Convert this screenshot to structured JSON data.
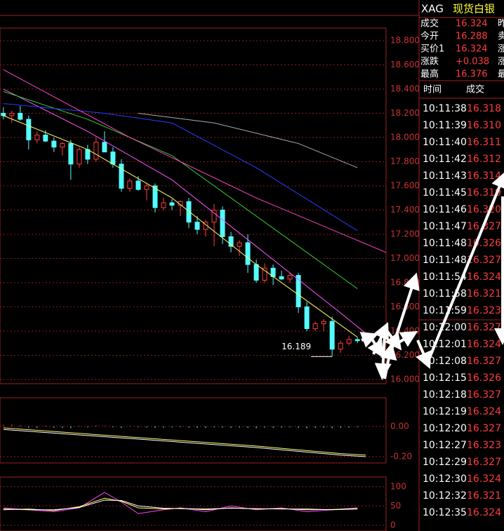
{
  "chart_data": [
    {
      "type": "candlestick",
      "xlim": [
        -0.4,
        45.4
      ],
      "ylim": [
        15.965,
        18.904
      ],
      "yticks": [
        {
          "value": 18.8,
          "label": "18.800"
        },
        {
          "value": 18.6,
          "label": "18.600"
        },
        {
          "value": 18.4,
          "label": "18.400"
        },
        {
          "value": 18.2,
          "label": "18.200"
        },
        {
          "value": 18.0,
          "label": "18.000"
        },
        {
          "value": 17.8,
          "label": "17.800"
        },
        {
          "value": 17.6,
          "label": "17.600"
        },
        {
          "value": 17.4,
          "label": "17.400"
        },
        {
          "value": 17.2,
          "label": "17.200"
        },
        {
          "value": 17.0,
          "label": "17.000"
        },
        {
          "value": 16.8,
          "label": "16.800"
        },
        {
          "value": 16.6,
          "label": "16.600"
        },
        {
          "value": 16.4,
          "label": "16.400"
        },
        {
          "value": 16.2,
          "label": "16.200"
        },
        {
          "value": 16.0,
          "label": "16.000"
        }
      ],
      "grid": true,
      "up_color": "#ff3c3c",
      "down_color": "#54fcfc",
      "open": [
        18.2,
        18.18,
        18.2,
        18.15,
        17.98,
        18.02,
        17.97,
        17.92,
        17.95,
        17.78,
        17.9,
        17.82,
        17.96,
        17.88,
        17.78,
        17.58,
        17.64,
        17.57,
        17.6,
        17.42,
        17.46,
        17.44,
        17.47,
        17.3,
        17.24,
        17.3,
        17.4,
        17.18,
        17.1,
        17.13,
        16.95,
        16.82,
        16.92,
        16.85,
        16.83,
        16.86,
        16.6,
        16.42,
        16.46,
        16.48,
        16.25,
        16.3,
        16.33
      ],
      "high": [
        18.25,
        18.22,
        18.26,
        18.18,
        18.05,
        18.06,
        18.0,
        17.96,
        17.98,
        17.92,
        17.94,
        18.0,
        18.05,
        17.92,
        17.82,
        17.66,
        17.68,
        17.62,
        17.62,
        17.5,
        17.49,
        17.48,
        17.5,
        17.35,
        17.32,
        17.45,
        17.43,
        17.22,
        17.15,
        17.2,
        16.99,
        16.96,
        16.95,
        16.9,
        16.88,
        16.88,
        16.64,
        16.48,
        16.5,
        16.52,
        16.32,
        16.36,
        16.35
      ],
      "low": [
        18.15,
        18.12,
        18.14,
        17.9,
        17.95,
        17.96,
        17.88,
        17.85,
        17.65,
        17.75,
        17.78,
        17.8,
        17.9,
        17.75,
        17.55,
        17.55,
        17.56,
        17.48,
        17.38,
        17.4,
        17.4,
        17.35,
        17.25,
        17.2,
        17.18,
        17.1,
        17.12,
        17.05,
        17.02,
        16.88,
        16.8,
        16.8,
        16.78,
        16.82,
        16.8,
        16.55,
        16.4,
        16.4,
        16.4,
        16.189,
        16.22,
        16.28,
        16.3
      ],
      "close": [
        18.18,
        18.2,
        18.15,
        17.98,
        18.02,
        17.97,
        17.92,
        17.95,
        17.78,
        17.9,
        17.82,
        17.96,
        17.88,
        17.78,
        17.58,
        17.64,
        17.57,
        17.6,
        17.42,
        17.46,
        17.44,
        17.47,
        17.3,
        17.24,
        17.3,
        17.4,
        17.18,
        17.1,
        17.13,
        16.95,
        16.82,
        16.92,
        16.85,
        16.83,
        16.86,
        16.6,
        16.42,
        16.46,
        16.48,
        16.25,
        16.3,
        16.33,
        16.32
      ],
      "series": [
        {
          "color": "#ffff66",
          "x": [
            0,
            10,
            20,
            30,
            40,
            42
          ],
          "values": [
            18.18,
            17.9,
            17.5,
            16.95,
            16.45,
            16.35
          ]
        },
        {
          "color": "#ff55ff",
          "x": [
            0,
            10,
            20,
            30,
            40,
            43
          ],
          "values": [
            18.4,
            18.05,
            17.65,
            17.1,
            16.55,
            16.38
          ]
        },
        {
          "color": "#33cc33",
          "x": [
            0,
            10,
            20,
            28,
            38,
            42
          ],
          "values": [
            18.38,
            18.15,
            17.85,
            17.45,
            16.95,
            16.75
          ]
        },
        {
          "color": "#2a3cff",
          "x": [
            0,
            12,
            20,
            30,
            42
          ],
          "values": [
            18.28,
            18.2,
            18.12,
            17.75,
            17.23
          ]
        },
        {
          "color": "#aaaaaa",
          "x": [
            16,
            25,
            35,
            42
          ],
          "values": [
            18.2,
            18.12,
            17.95,
            17.75
          ]
        },
        {
          "color": "#ff44cc",
          "x": [
            0,
            15,
            30,
            45.4
          ],
          "values": [
            18.56,
            18.0,
            17.5,
            17.05
          ]
        }
      ],
      "annotation": "16.189",
      "annotation_index": 39
    },
    {
      "type": "macd",
      "xlim": [
        -0.4,
        45.4
      ],
      "ylim": [
        -0.242,
        0.19
      ],
      "yticks": [
        {
          "value": 0,
          "label": "0.00"
        },
        {
          "value": -0.2,
          "label": "-0.20"
        }
      ],
      "grid": true,
      "bars": [
        0.01,
        0.012,
        0.01,
        -0.008,
        -0.01,
        0.006,
        -0.008,
        -0.01,
        -0.012,
        0.005,
        -0.006,
        0.008,
        0.005,
        -0.006,
        -0.01,
        0.004,
        -0.005,
        -0.008,
        -0.01,
        -0.008,
        -0.006,
        -0.005,
        -0.008,
        -0.01,
        -0.01,
        -0.006,
        -0.008,
        -0.01,
        -0.008,
        -0.01,
        -0.012,
        -0.008,
        -0.01,
        -0.008,
        -0.006,
        -0.01,
        -0.012,
        -0.01,
        -0.008,
        -0.012,
        -0.01,
        -0.008,
        -0.006
      ],
      "series": [
        {
          "color": "#ffffff",
          "x": [
            0,
            10,
            20,
            30,
            40,
            43
          ],
          "values": [
            -0.02,
            -0.06,
            -0.1,
            -0.14,
            -0.19,
            -0.2
          ]
        },
        {
          "color": "#ffff66",
          "x": [
            0,
            10,
            20,
            30,
            40,
            43
          ],
          "values": [
            -0.01,
            -0.05,
            -0.09,
            -0.13,
            -0.18,
            -0.19
          ]
        }
      ]
    },
    {
      "type": "line",
      "xlim": [
        -0.4,
        45.4
      ],
      "ylim": [
        -15,
        125
      ],
      "yticks": [
        100,
        50,
        0
      ],
      "grid": true,
      "series": [
        {
          "color": "#ff44ff",
          "x": [
            0,
            3,
            6,
            9,
            12,
            14,
            16,
            19,
            21,
            24,
            27,
            30,
            33,
            36,
            39,
            42
          ],
          "values": [
            45,
            40,
            35,
            45,
            85,
            60,
            30,
            40,
            45,
            35,
            50,
            40,
            45,
            35,
            40,
            45
          ]
        },
        {
          "color": "#ffff66",
          "x": [
            0,
            3,
            6,
            9,
            12,
            14,
            16,
            19,
            21,
            24,
            27,
            30,
            33,
            36,
            39,
            42
          ],
          "values": [
            40,
            42,
            38,
            48,
            70,
            62,
            45,
            42,
            44,
            40,
            45,
            42,
            43,
            40,
            41,
            43
          ]
        },
        {
          "color": "#ffffff",
          "x": [
            0,
            3,
            6,
            9,
            12,
            14,
            16,
            19,
            21,
            24,
            27,
            30,
            33,
            36,
            39,
            42
          ],
          "values": [
            42,
            40,
            40,
            46,
            65,
            64,
            50,
            44,
            43,
            42,
            44,
            43,
            42,
            42,
            40,
            42
          ]
        }
      ]
    }
  ],
  "side_panel": {
    "symbol": "XAG",
    "name": "现货白银",
    "quote": [
      [
        "成交",
        "16.324",
        "昨"
      ],
      [
        "今开",
        "16.288",
        "卖"
      ],
      [
        "买价1",
        "16.324",
        "涨"
      ],
      [
        "涨跌",
        "+0.038",
        "涨"
      ],
      [
        "最高",
        "16.376",
        "最"
      ]
    ],
    "ticks_header": [
      "时间",
      "成交"
    ],
    "ticks": [
      [
        "10:11:38",
        "16.318"
      ],
      [
        "10:11:39",
        "16.310"
      ],
      [
        "10:11:40",
        "16.311"
      ],
      [
        "10:11:42",
        "16.312"
      ],
      [
        "10:11:43",
        "16.314"
      ],
      [
        "10:11:45",
        "16.319"
      ],
      [
        "10:11:46",
        "16.320"
      ],
      [
        "10:11:47",
        "16.327"
      ],
      [
        "10:11:48",
        "16.326"
      ],
      [
        "10:11:48",
        "16.327"
      ],
      [
        "10:11:54",
        "16.324"
      ],
      [
        "10:11:58",
        "16.321"
      ],
      [
        "10:11:59",
        "16.323"
      ],
      [
        "10:12:00",
        "16.327"
      ],
      [
        "10:12:01",
        "16.324"
      ],
      [
        "10:12:08",
        "16.327"
      ],
      [
        "10:12:15",
        "16.326"
      ],
      [
        "10:12:18",
        "16.327"
      ],
      [
        "10:12:19",
        "16.324"
      ],
      [
        "10:12:20",
        "16.327"
      ],
      [
        "10:12:27",
        "16.323"
      ],
      [
        "10:12:29",
        "16.327"
      ],
      [
        "10:12:30",
        "16.324"
      ],
      [
        "10:12:32",
        "16.321"
      ],
      [
        "10:12:35",
        "16.324"
      ]
    ]
  }
}
